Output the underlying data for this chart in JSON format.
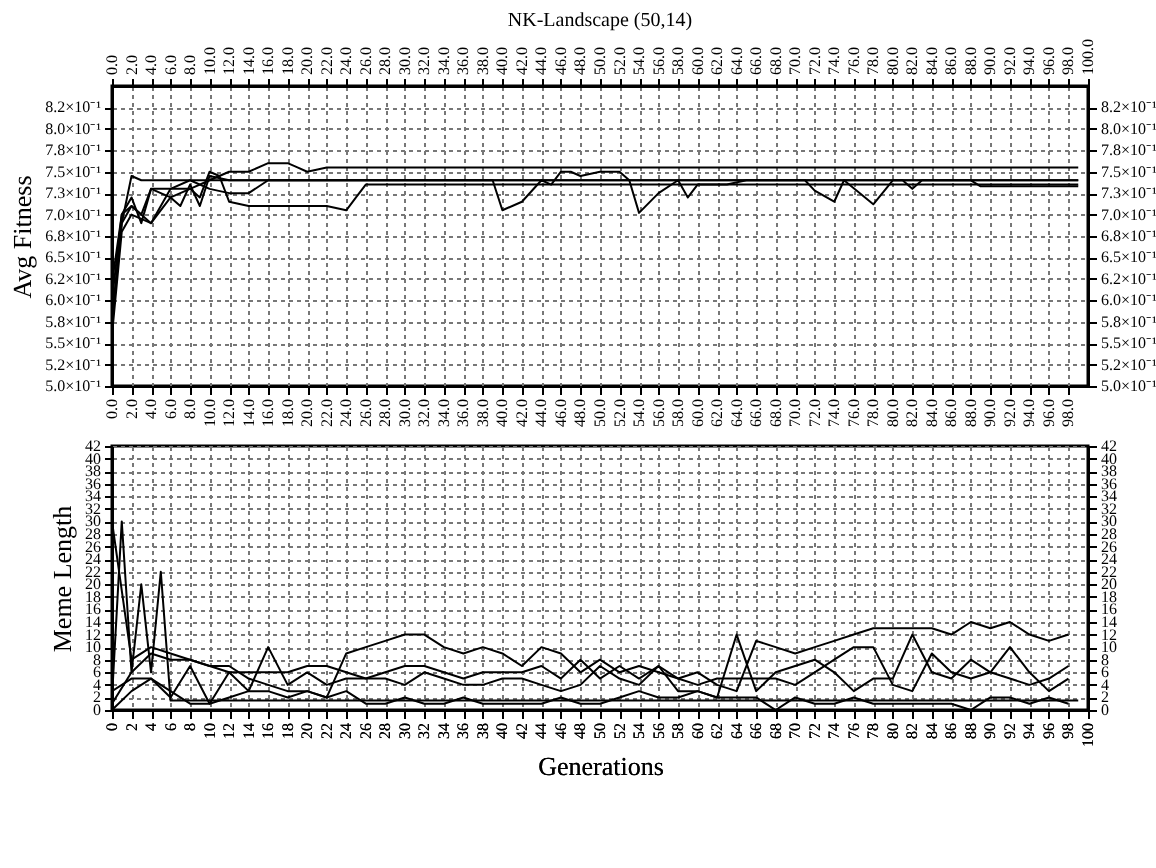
{
  "chart_data": [
    {
      "type": "line",
      "title": "NK-Landscape (50,14)",
      "ylabel": "Avg Fitness",
      "grid": true,
      "xlim": [
        0,
        100
      ],
      "xticks": [
        {
          "value": 0,
          "label": "0.0"
        },
        {
          "value": 2,
          "label": "2.0"
        },
        {
          "value": 4,
          "label": "4.0"
        },
        {
          "value": 6,
          "label": "6.0"
        },
        {
          "value": 8,
          "label": "8.0"
        },
        {
          "value": 10,
          "label": "10.0"
        },
        {
          "value": 12,
          "label": "12.0"
        },
        {
          "value": 14,
          "label": "14.0"
        },
        {
          "value": 16,
          "label": "16.0"
        },
        {
          "value": 18,
          "label": "18.0"
        },
        {
          "value": 20,
          "label": "20.0"
        },
        {
          "value": 22,
          "label": "22.0"
        },
        {
          "value": 24,
          "label": "24.0"
        },
        {
          "value": 26,
          "label": "26.0"
        },
        {
          "value": 28,
          "label": "28.0"
        },
        {
          "value": 30,
          "label": "30.0"
        },
        {
          "value": 32,
          "label": "32.0"
        },
        {
          "value": 34,
          "label": "34.0"
        },
        {
          "value": 36,
          "label": "36.0"
        },
        {
          "value": 38,
          "label": "38.0"
        },
        {
          "value": 40,
          "label": "40.0"
        },
        {
          "value": 42,
          "label": "42.0"
        },
        {
          "value": 44,
          "label": "44.0"
        },
        {
          "value": 46,
          "label": "46.0"
        },
        {
          "value": 48,
          "label": "48.0"
        },
        {
          "value": 50,
          "label": "50.0"
        },
        {
          "value": 52,
          "label": "52.0"
        },
        {
          "value": 54,
          "label": "54.0"
        },
        {
          "value": 56,
          "label": "56.0"
        },
        {
          "value": 58,
          "label": "58.0"
        },
        {
          "value": 60,
          "label": "60.0"
        },
        {
          "value": 62,
          "label": "62.0"
        },
        {
          "value": 64,
          "label": "64.0"
        },
        {
          "value": 66,
          "label": "66.0"
        },
        {
          "value": 68,
          "label": "68.0"
        },
        {
          "value": 70,
          "label": "70.0"
        },
        {
          "value": 72,
          "label": "72.0"
        },
        {
          "value": 74,
          "label": "74.0"
        },
        {
          "value": 76,
          "label": "76.0"
        },
        {
          "value": 78,
          "label": "78.0"
        },
        {
          "value": 80,
          "label": "80.0"
        },
        {
          "value": 82,
          "label": "82.0"
        },
        {
          "value": 84,
          "label": "84.0"
        },
        {
          "value": 86,
          "label": "86.0"
        },
        {
          "value": 88,
          "label": "88.0"
        },
        {
          "value": 90,
          "label": "90.0"
        },
        {
          "value": 92,
          "label": "92.0"
        },
        {
          "value": 94,
          "label": "94.0"
        },
        {
          "value": 96,
          "label": "96.0"
        },
        {
          "value": 98,
          "label": "98.0"
        }
      ],
      "x2lim": [
        0,
        100
      ],
      "x2ticks": [
        {
          "value": 0,
          "label": "0.0"
        },
        {
          "value": 2,
          "label": "2.0"
        },
        {
          "value": 4,
          "label": "4.0"
        },
        {
          "value": 6,
          "label": "6.0"
        },
        {
          "value": 8,
          "label": "8.0"
        },
        {
          "value": 10,
          "label": "10.0"
        },
        {
          "value": 12,
          "label": "12.0"
        },
        {
          "value": 14,
          "label": "14.0"
        },
        {
          "value": 16,
          "label": "16.0"
        },
        {
          "value": 18,
          "label": "18.0"
        },
        {
          "value": 20,
          "label": "20.0"
        },
        {
          "value": 22,
          "label": "22.0"
        },
        {
          "value": 24,
          "label": "24.0"
        },
        {
          "value": 26,
          "label": "26.0"
        },
        {
          "value": 28,
          "label": "28.0"
        },
        {
          "value": 30,
          "label": "30.0"
        },
        {
          "value": 32,
          "label": "32.0"
        },
        {
          "value": 34,
          "label": "34.0"
        },
        {
          "value": 36,
          "label": "36.0"
        },
        {
          "value": 38,
          "label": "38.0"
        },
        {
          "value": 40,
          "label": "40.0"
        },
        {
          "value": 42,
          "label": "42.0"
        },
        {
          "value": 44,
          "label": "44.0"
        },
        {
          "value": 46,
          "label": "46.0"
        },
        {
          "value": 48,
          "label": "48.0"
        },
        {
          "value": 50,
          "label": "50.0"
        },
        {
          "value": 52,
          "label": "52.0"
        },
        {
          "value": 54,
          "label": "54.0"
        },
        {
          "value": 56,
          "label": "56.0"
        },
        {
          "value": 58,
          "label": "58.0"
        },
        {
          "value": 60,
          "label": "60.0"
        },
        {
          "value": 62,
          "label": "62.0"
        },
        {
          "value": 64,
          "label": "64.0"
        },
        {
          "value": 66,
          "label": "66.0"
        },
        {
          "value": 68,
          "label": "68.0"
        },
        {
          "value": 70,
          "label": "70.0"
        },
        {
          "value": 72,
          "label": "72.0"
        },
        {
          "value": 74,
          "label": "74.0"
        },
        {
          "value": 76,
          "label": "76.0"
        },
        {
          "value": 78,
          "label": "78.0"
        },
        {
          "value": 80,
          "label": "80.0"
        },
        {
          "value": 82,
          "label": "82.0"
        },
        {
          "value": 84,
          "label": "84.0"
        },
        {
          "value": 86,
          "label": "86.0"
        },
        {
          "value": 88,
          "label": "88.0"
        },
        {
          "value": 90,
          "label": "90.0"
        },
        {
          "value": 92,
          "label": "92.0"
        },
        {
          "value": 94,
          "label": "94.0"
        },
        {
          "value": 96,
          "label": "96.0"
        },
        {
          "value": 98,
          "label": "98.0"
        },
        {
          "value": 100,
          "label": "100.0"
        }
      ],
      "ylim": [
        0.5,
        0.85
      ],
      "yticks": [
        {
          "value": 0.5,
          "label": "5.0×10⁻¹"
        },
        {
          "value": 0.525,
          "label": "5.2×10⁻¹"
        },
        {
          "value": 0.55,
          "label": "5.5×10⁻¹"
        },
        {
          "value": 0.575,
          "label": "5.8×10⁻¹"
        },
        {
          "value": 0.6,
          "label": "6.0×10⁻¹"
        },
        {
          "value": 0.625,
          "label": "6.2×10⁻¹"
        },
        {
          "value": 0.65,
          "label": "6.5×10⁻¹"
        },
        {
          "value": 0.675,
          "label": "6.8×10⁻¹"
        },
        {
          "value": 0.7,
          "label": "7.0×10⁻¹"
        },
        {
          "value": 0.725,
          "label": "7.3×10⁻¹"
        },
        {
          "value": 0.75,
          "label": "7.5×10⁻¹"
        },
        {
          "value": 0.775,
          "label": "7.8×10⁻¹"
        },
        {
          "value": 0.8,
          "label": "8.0×10⁻¹"
        },
        {
          "value": 0.825,
          "label": "8.2×10⁻¹"
        }
      ],
      "y2lim": [
        0.5,
        0.85
      ],
      "y2ticks": [
        {
          "value": 0.5,
          "label": "5.0×10⁻¹"
        },
        {
          "value": 0.525,
          "label": "5.2×10⁻¹"
        },
        {
          "value": 0.55,
          "label": "5.5×10⁻¹"
        },
        {
          "value": 0.575,
          "label": "5.8×10⁻¹"
        },
        {
          "value": 0.6,
          "label": "6.0×10⁻¹"
        },
        {
          "value": 0.625,
          "label": "6.2×10⁻¹"
        },
        {
          "value": 0.65,
          "label": "6.5×10⁻¹"
        },
        {
          "value": 0.675,
          "label": "6.8×10⁻¹"
        },
        {
          "value": 0.7,
          "label": "7.0×10⁻¹"
        },
        {
          "value": 0.725,
          "label": "7.3×10⁻¹"
        },
        {
          "value": 0.75,
          "label": "7.5×10⁻¹"
        },
        {
          "value": 0.775,
          "label": "7.8×10⁻¹"
        },
        {
          "value": 0.8,
          "label": "8.0×10⁻¹"
        },
        {
          "value": 0.825,
          "label": "8.2×10⁻¹"
        }
      ],
      "series": [
        {
          "color": "#000000",
          "x": [
            0,
            1,
            2,
            3,
            8,
            99
          ],
          "values": [
            0.58,
            0.69,
            0.745,
            0.74,
            0.74,
            0.74
          ]
        },
        {
          "color": "#000000",
          "x": [
            0,
            1,
            2,
            4,
            6,
            8,
            10,
            12,
            14,
            16,
            18,
            19,
            20,
            22,
            99
          ],
          "values": [
            0.56,
            0.68,
            0.7,
            0.69,
            0.72,
            0.73,
            0.74,
            0.75,
            0.75,
            0.76,
            0.76,
            0.755,
            0.75,
            0.755,
            0.755
          ]
        },
        {
          "color": "#000000",
          "x": [
            0,
            1,
            2,
            4,
            6,
            8,
            9,
            10,
            11,
            12,
            14,
            22,
            24,
            25,
            26,
            99
          ],
          "values": [
            0.57,
            0.69,
            0.71,
            0.69,
            0.73,
            0.73,
            0.72,
            0.75,
            0.745,
            0.715,
            0.71,
            0.71,
            0.705,
            0.72,
            0.735,
            0.735
          ]
        },
        {
          "color": "#000000",
          "x": [
            0,
            1,
            2,
            3,
            4,
            6,
            8,
            10,
            12,
            14,
            16,
            38,
            39,
            40,
            42,
            44,
            45,
            46,
            47,
            48,
            50,
            52,
            53,
            54,
            56,
            58,
            59,
            60,
            61,
            63,
            65,
            71,
            72,
            74,
            75,
            78,
            80,
            81,
            82,
            83,
            88,
            89,
            99
          ],
          "values": [
            0.6,
            0.7,
            0.72,
            0.69,
            0.73,
            0.73,
            0.74,
            0.73,
            0.725,
            0.725,
            0.74,
            0.74,
            0.74,
            0.705,
            0.715,
            0.74,
            0.735,
            0.75,
            0.75,
            0.745,
            0.75,
            0.75,
            0.74,
            0.702,
            0.725,
            0.74,
            0.72,
            0.735,
            0.735,
            0.735,
            0.74,
            0.74,
            0.728,
            0.715,
            0.74,
            0.712,
            0.74,
            0.74,
            0.73,
            0.74,
            0.74,
            0.733,
            0.733
          ]
        },
        {
          "color": "#000000",
          "x": [
            0,
            1,
            2,
            3,
            4,
            6,
            7,
            8,
            9,
            10,
            12,
            99
          ],
          "values": [
            0.62,
            0.7,
            0.71,
            0.7,
            0.73,
            0.72,
            0.71,
            0.735,
            0.71,
            0.745,
            0.74,
            0.74
          ]
        }
      ]
    },
    {
      "type": "line",
      "xlabel": "Generations",
      "ylabel": "Meme Length",
      "grid": true,
      "xlim": [
        0,
        100
      ],
      "xticks": [
        0,
        2,
        4,
        6,
        8,
        10,
        12,
        14,
        16,
        18,
        20,
        22,
        24,
        26,
        28,
        30,
        32,
        34,
        36,
        38,
        40,
        42,
        44,
        46,
        48,
        50,
        52,
        54,
        56,
        58,
        60,
        62,
        64,
        66,
        68,
        70,
        72,
        74,
        76,
        78,
        80,
        82,
        84,
        86,
        88,
        90,
        92,
        94,
        96,
        98,
        100
      ],
      "ylim": [
        0,
        42
      ],
      "yticks": [
        0,
        2,
        4,
        6,
        8,
        10,
        12,
        14,
        16,
        18,
        20,
        22,
        24,
        26,
        28,
        30,
        32,
        34,
        36,
        38,
        40,
        42
      ],
      "y2lim": [
        0,
        42
      ],
      "y2ticks": [
        0,
        2,
        4,
        6,
        8,
        10,
        12,
        14,
        16,
        18,
        20,
        22,
        24,
        26,
        28,
        30,
        32,
        34,
        36,
        38,
        40,
        42
      ],
      "x": [
        0,
        2,
        4,
        6,
        8,
        10,
        12,
        14,
        16,
        18,
        20,
        22,
        24,
        26,
        28,
        30,
        32,
        34,
        36,
        38,
        40,
        42,
        44,
        46,
        48,
        50,
        52,
        54,
        56,
        58,
        60,
        62,
        64,
        66,
        68,
        70,
        72,
        74,
        76,
        78,
        80,
        82,
        84,
        86,
        88,
        90,
        92,
        94,
        96,
        98
      ],
      "series": [
        {
          "color": "#000000",
          "values": [
            30,
            8,
            10,
            9,
            8,
            7,
            7,
            5,
            4,
            3,
            3,
            2,
            9,
            10,
            11,
            12,
            12,
            10,
            9,
            10,
            9,
            7,
            10,
            9,
            6,
            8,
            6,
            7,
            6,
            5,
            6,
            4,
            3,
            11,
            10,
            9,
            10,
            11,
            12,
            13,
            13,
            13,
            13,
            12,
            14,
            13,
            14,
            12,
            11,
            12
          ]
        },
        {
          "color": "#000000",
          "values": [
            1,
            6,
            9,
            8,
            8,
            7,
            6,
            6,
            6,
            6,
            7,
            7,
            6,
            5,
            6,
            7,
            7,
            6,
            5,
            6,
            6,
            6,
            7,
            5,
            8,
            5,
            7,
            5,
            7,
            5,
            4,
            5,
            5,
            5,
            5,
            4,
            6,
            8,
            10,
            10,
            4,
            3,
            9,
            6,
            5,
            6,
            5,
            4,
            5,
            7
          ]
        },
        {
          "color": "#000000",
          "values": [
            0,
            3,
            5,
            3,
            1,
            1,
            2,
            3,
            3,
            2,
            3,
            2,
            3,
            1,
            1,
            2,
            1,
            1,
            2,
            1,
            1,
            1,
            1,
            2,
            1,
            1,
            2,
            3,
            2,
            2,
            3,
            2,
            2,
            2,
            0,
            2,
            1,
            1,
            2,
            1,
            1,
            1,
            1,
            1,
            0,
            2,
            2,
            1,
            2,
            1
          ]
        },
        {
          "color": "#000000",
          "values": [
            3,
            5,
            5,
            2,
            7,
            1,
            6,
            3,
            10,
            4,
            6,
            4,
            5,
            5,
            5,
            4,
            6,
            5,
            4,
            4,
            5,
            5,
            4,
            3,
            4,
            7,
            5,
            4,
            7,
            3,
            3,
            2,
            12,
            3,
            6,
            7,
            8,
            6,
            3,
            5,
            5,
            12,
            6,
            5,
            8,
            6,
            10,
            6,
            3,
            5
          ]
        },
        {
          "color": "#000000",
          "x": [
            0,
            1,
            2,
            3,
            4,
            5,
            6,
            99
          ],
          "values": [
            2,
            30,
            6,
            20,
            6,
            22,
            1.5,
            1.5
          ]
        }
      ]
    }
  ]
}
